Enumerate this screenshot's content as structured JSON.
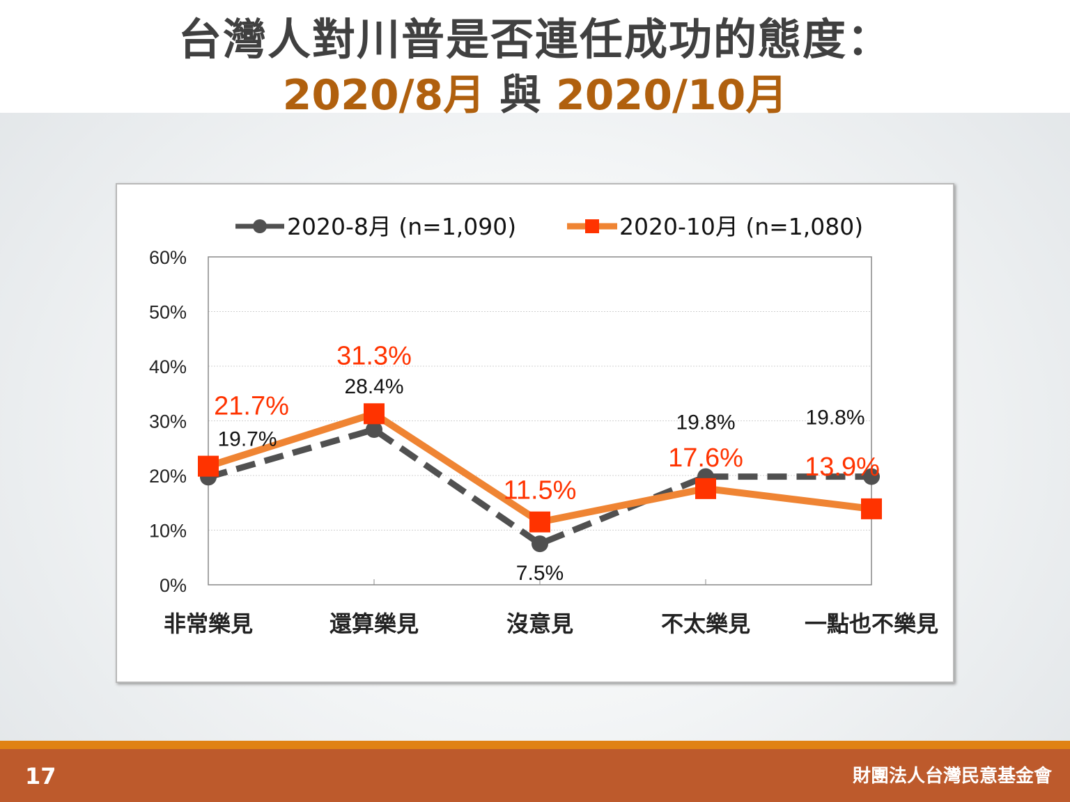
{
  "title": {
    "line1": "台灣人對川普是否連任成功的態度：",
    "line2_a": "2020/8月",
    "line2_mid": "與",
    "line2_b": "2020/10月"
  },
  "footer": {
    "page_number": "17",
    "organization": "財團法人台灣民意基金會"
  },
  "colors": {
    "series1": "#505050",
    "series2": "#ef8433",
    "series2_marker": "#ff3300",
    "series2_label": "#ff3300",
    "footer": "#bd5a2c",
    "footer_line": "#e08214",
    "title_accent": "#b0600e"
  },
  "chart_data": {
    "type": "line",
    "categories": [
      "非常樂見",
      "還算樂見",
      "沒意見",
      "不太樂見",
      "一點也不樂見"
    ],
    "series": [
      {
        "name": "2020-8月 (n=1,090)",
        "values": [
          19.7,
          28.4,
          7.5,
          19.8,
          19.8
        ],
        "labels": [
          "19.7%",
          "28.4%",
          "7.5%",
          "19.8%",
          "19.8%"
        ],
        "style": "dashed",
        "marker": "circle"
      },
      {
        "name": "2020-10月 (n=1,080)",
        "values": [
          21.7,
          31.3,
          11.5,
          17.6,
          13.9
        ],
        "labels": [
          "21.7%",
          "31.3%",
          "11.5%",
          "17.6%",
          "13.9%"
        ],
        "style": "solid",
        "marker": "square"
      }
    ],
    "ylim": [
      0,
      60
    ],
    "yticks": [
      "0%",
      "10%",
      "20%",
      "30%",
      "40%",
      "50%",
      "60%"
    ],
    "yticks_values": [
      0,
      10,
      20,
      30,
      40,
      50,
      60
    ],
    "grid": true,
    "legend": "top"
  }
}
